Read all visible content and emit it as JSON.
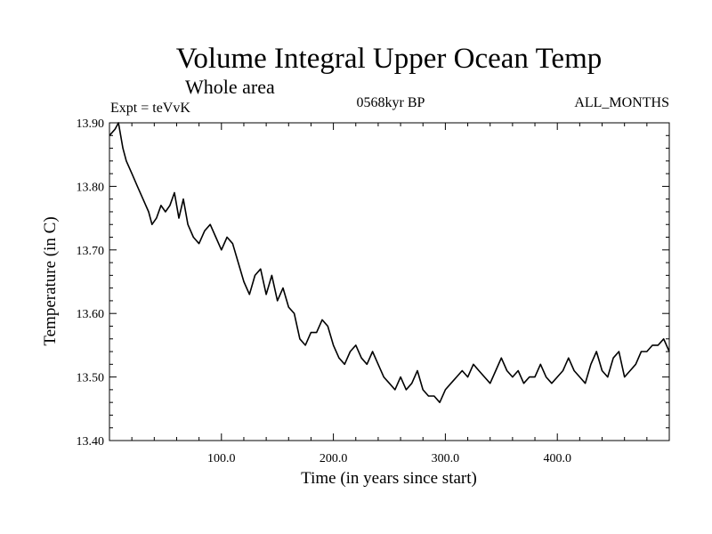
{
  "chart_data": {
    "type": "line",
    "title": "Volume Integral Upper Ocean Temp",
    "subtitle": "Whole area",
    "annotations": {
      "expt": "Expt = teVvK",
      "period": "0568kyr BP",
      "months": "ALL_MONTHS"
    },
    "xlabel": "Time (in years since start)",
    "ylabel": "Temperature (in C)",
    "xlim": [
      0,
      500
    ],
    "ylim": [
      13.4,
      13.9
    ],
    "x_ticks": [
      {
        "value": 100,
        "label": "100.0"
      },
      {
        "value": 200,
        "label": "200.0"
      },
      {
        "value": 300,
        "label": "300.0"
      },
      {
        "value": 400,
        "label": "400.0"
      }
    ],
    "y_ticks": [
      {
        "value": 13.4,
        "label": "13.40"
      },
      {
        "value": 13.5,
        "label": "13.50"
      },
      {
        "value": 13.6,
        "label": "13.60"
      },
      {
        "value": 13.7,
        "label": "13.70"
      },
      {
        "value": 13.8,
        "label": "13.80"
      },
      {
        "value": 13.9,
        "label": "13.90"
      }
    ],
    "grid": false,
    "series": [
      {
        "x": [
          0,
          5,
          8,
          12,
          15,
          20,
          25,
          30,
          35,
          38,
          42,
          46,
          50,
          54,
          58,
          62,
          66,
          70,
          75,
          80,
          85,
          90,
          95,
          100,
          105,
          110,
          115,
          120,
          125,
          130,
          135,
          140,
          145,
          150,
          155,
          160,
          165,
          170,
          175,
          180,
          185,
          190,
          195,
          200,
          205,
          210,
          215,
          220,
          225,
          230,
          235,
          240,
          245,
          250,
          255,
          260,
          265,
          270,
          275,
          280,
          285,
          290,
          295,
          300,
          305,
          310,
          315,
          320,
          325,
          330,
          335,
          340,
          345,
          350,
          355,
          360,
          365,
          370,
          375,
          380,
          385,
          390,
          395,
          400,
          405,
          410,
          415,
          420,
          425,
          430,
          435,
          440,
          445,
          450,
          455,
          460,
          465,
          470,
          475,
          480,
          485,
          490,
          495,
          500
        ],
        "y": [
          13.88,
          13.89,
          13.9,
          13.86,
          13.84,
          13.82,
          13.8,
          13.78,
          13.76,
          13.74,
          13.75,
          13.77,
          13.76,
          13.77,
          13.79,
          13.75,
          13.78,
          13.74,
          13.72,
          13.71,
          13.73,
          13.74,
          13.72,
          13.7,
          13.72,
          13.71,
          13.68,
          13.65,
          13.63,
          13.66,
          13.67,
          13.63,
          13.66,
          13.62,
          13.64,
          13.61,
          13.6,
          13.56,
          13.55,
          13.57,
          13.57,
          13.59,
          13.58,
          13.55,
          13.53,
          13.52,
          13.54,
          13.55,
          13.53,
          13.52,
          13.54,
          13.52,
          13.5,
          13.49,
          13.48,
          13.5,
          13.48,
          13.49,
          13.51,
          13.48,
          13.47,
          13.47,
          13.46,
          13.48,
          13.49,
          13.5,
          13.51,
          13.5,
          13.52,
          13.51,
          13.5,
          13.49,
          13.51,
          13.53,
          13.51,
          13.5,
          13.51,
          13.49,
          13.5,
          13.5,
          13.52,
          13.5,
          13.49,
          13.5,
          13.51,
          13.53,
          13.51,
          13.5,
          13.49,
          13.52,
          13.54,
          13.51,
          13.5,
          13.53,
          13.54,
          13.5,
          13.51,
          13.52,
          13.54,
          13.54,
          13.55,
          13.55,
          13.56,
          13.54
        ]
      }
    ]
  }
}
